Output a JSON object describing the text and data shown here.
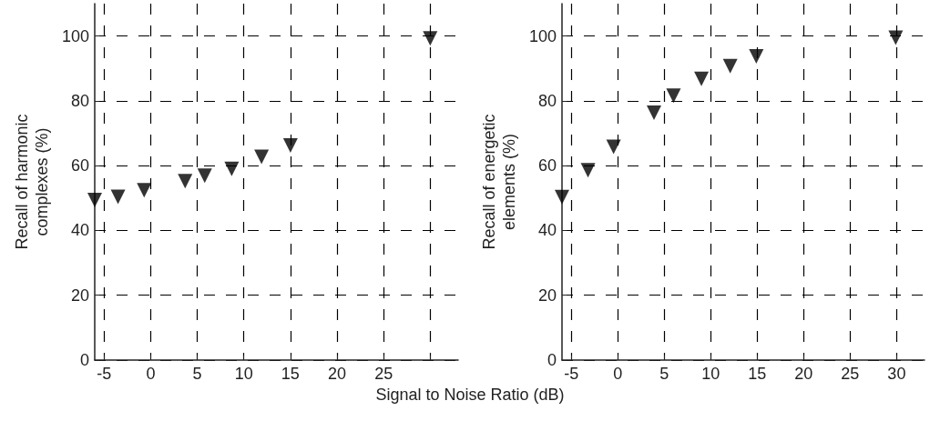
{
  "chart_data": [
    {
      "type": "scatter",
      "xlabel": "Signal to Noise Ratio (dB)",
      "ylabel": "Recall of harmonic\ncomplexes (%)",
      "x": [
        -6,
        -3.5,
        -0.7,
        3.7,
        5.8,
        8.7,
        11.9,
        15,
        30
      ],
      "series": [
        {
          "color": "#000000",
          "values": [
            49.4,
            50.4,
            52.4,
            55.2,
            56.9,
            59,
            62.7,
            66.2,
            99.3
          ]
        }
      ],
      "xlim": [
        -6,
        33
      ],
      "xticks": [
        -5,
        0,
        5,
        10,
        15,
        20,
        25,
        {
          "value": 30,
          "label": null
        }
      ],
      "ylim": [
        0,
        110
      ],
      "yticks": [
        0,
        20,
        40,
        60,
        80,
        100
      ],
      "grid": true,
      "marker": "triangle"
    },
    {
      "type": "scatter",
      "ylabel": "Recall of energetic\nelements (%)",
      "x": [
        -6,
        -3.2,
        -0.45,
        3.9,
        6,
        9,
        12.1,
        14.9,
        29.9
      ],
      "series": [
        {
          "color": "#000000",
          "values": [
            50.3,
            58.6,
            65.8,
            76.3,
            81.6,
            86.8,
            90.7,
            93.7,
            99.5
          ]
        }
      ],
      "xlim": [
        -6,
        33
      ],
      "xticks": [
        -5,
        0,
        5,
        10,
        15,
        20,
        25,
        30
      ],
      "ylim": [
        0,
        110
      ],
      "yticks": [
        0,
        20,
        40,
        60,
        80,
        100
      ],
      "grid": true,
      "marker": "triangle"
    }
  ]
}
